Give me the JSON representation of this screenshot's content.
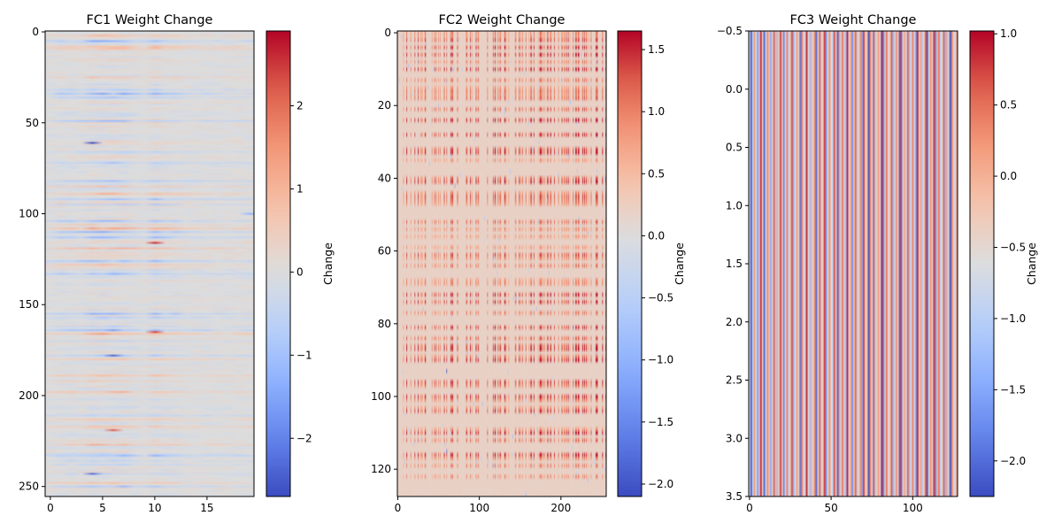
{
  "chart_data": [
    {
      "type": "heatmap",
      "title": "FC1 Weight Change",
      "colormap": "coolwarm",
      "grid": false,
      "rows": 256,
      "cols": 20,
      "xlim": [
        -0.5,
        19.5
      ],
      "ylim": [
        255.5,
        -0.5
      ],
      "x_ticks": [
        0,
        5,
        10,
        15
      ],
      "x_tick_labels": [
        "0",
        "5",
        "10",
        "15"
      ],
      "y_ticks": [
        0,
        50,
        100,
        150,
        200,
        250
      ],
      "y_tick_labels": [
        "0",
        "50",
        "100",
        "150",
        "200",
        "250"
      ],
      "colorbar": {
        "label": "Change",
        "range": [
          -2.7,
          2.9
        ],
        "center": 0,
        "ticks": [
          -2,
          -1,
          0,
          1,
          2
        ],
        "tick_labels": [
          "−2",
          "−1",
          "0",
          "1",
          "2"
        ]
      },
      "pattern": "mostly near zero; strongest changes concentrated in columns 4-7 and 10 with horizontal streaks across rows",
      "notable_values": [
        {
          "row": 61,
          "col": 4,
          "value": -2.7
        },
        {
          "row": 116,
          "col": 10,
          "value": 2.6
        },
        {
          "row": 165,
          "col": 10,
          "value": 2.4
        },
        {
          "row": 219,
          "col": 6,
          "value": 2.2
        },
        {
          "row": 243,
          "col": 4,
          "value": -2.3
        },
        {
          "row": 178,
          "col": 6,
          "value": -2.4
        },
        {
          "row": 100,
          "col": 19,
          "value": -1.2
        }
      ]
    },
    {
      "type": "heatmap",
      "title": "FC2 Weight Change",
      "colormap": "coolwarm",
      "grid": false,
      "rows": 128,
      "cols": 256,
      "xlim": [
        -0.5,
        255.5
      ],
      "ylim": [
        127.5,
        -0.5
      ],
      "x_ticks": [
        0,
        100,
        200
      ],
      "x_tick_labels": [
        "0",
        "100",
        "200"
      ],
      "y_ticks": [
        0,
        20,
        40,
        60,
        80,
        100,
        120
      ],
      "y_tick_labels": [
        "0",
        "20",
        "40",
        "60",
        "80",
        "100",
        "120"
      ],
      "colorbar": {
        "label": "Change",
        "range": [
          -2.1,
          1.65
        ],
        "center": 0,
        "ticks": [
          -2.0,
          -1.5,
          -1.0,
          -0.5,
          0.0,
          0.5,
          1.0,
          1.5
        ],
        "tick_labels": [
          "−2.0",
          "−1.5",
          "−1.0",
          "−0.5",
          "0.0",
          "0.5",
          "1.0",
          "1.5"
        ]
      },
      "pattern": "background slightly positive (~0.2); grid of small positive changes at specific rows and columns, a few isolated negative points",
      "notable_values": [
        {
          "row": 93,
          "col": 60,
          "value": -2.0
        },
        {
          "row": 115,
          "col": 60,
          "value": -1.6
        },
        {
          "row": 42,
          "col": 70,
          "value": -1.2
        }
      ]
    },
    {
      "type": "heatmap",
      "title": "FC3 Weight Change",
      "colormap": "coolwarm",
      "grid": false,
      "rows": 4,
      "cols": 128,
      "xlim": [
        -0.5,
        127.5
      ],
      "ylim": [
        3.5,
        -0.5
      ],
      "x_ticks": [
        0,
        50,
        100
      ],
      "x_tick_labels": [
        "0",
        "50",
        "100"
      ],
      "y_ticks": [
        -0.5,
        0.0,
        0.5,
        1.0,
        1.5,
        2.0,
        2.5,
        3.0,
        3.5
      ],
      "y_tick_labels": [
        "−0.5",
        "0.0",
        "0.5",
        "1.0",
        "1.5",
        "2.0",
        "2.5",
        "3.0",
        "3.5"
      ],
      "colorbar": {
        "label": "Change",
        "range": [
          -2.25,
          1.02
        ],
        "center": -0.6,
        "ticks": [
          -2.0,
          -1.5,
          -1.0,
          -0.5,
          0.0,
          0.5,
          1.0
        ],
        "tick_labels": [
          "−2.0",
          "−1.5",
          "−1.0",
          "−0.5",
          "0.0",
          "0.5",
          "1.0"
        ]
      },
      "pattern": "values constant down each column (vertical stripes), alternating between about -2.2 and +1.0 across the 128 columns",
      "column_values": [
        -0.6,
        -2.2,
        -0.9,
        0.2,
        -0.7,
        -1.6,
        -0.3,
        0.9,
        -0.5,
        -2.1,
        -0.8,
        0.3,
        -0.2,
        -1.5,
        -0.4,
        0.6,
        -1.1,
        0.1,
        -0.7,
        0.8,
        -0.3,
        -1.8,
        -0.5,
        0.4,
        -0.9,
        -0.2,
        0.7,
        -1.4,
        -0.6,
        0.2,
        -0.4,
        -1.9,
        0.5,
        -0.3,
        -0.8,
        0.9,
        -0.5,
        -1.2,
        0.0,
        -0.7,
        0.4,
        -2.0,
        -0.4,
        0.6,
        -0.9,
        -0.2,
        0.8,
        -1.6,
        -0.5,
        0.3,
        -0.6,
        -1.0,
        0.7,
        -0.3,
        -2.1,
        0.2,
        -0.8,
        0.5,
        -0.4,
        -1.3,
        0.9,
        -0.6,
        0.1,
        -1.7,
        -0.2,
        0.6,
        -0.9,
        -0.4,
        0.3,
        -1.5,
        0.8,
        -0.5,
        -0.1,
        -2.2,
        0.4,
        -0.7,
        0.7,
        -1.1,
        -0.3,
        0.2,
        -0.8,
        0.9,
        -1.9,
        -0.4,
        0.5,
        -0.6,
        -0.2,
        0.6,
        -1.4,
        -0.5,
        0.3,
        -0.9,
        0.8,
        -2.0,
        -0.3,
        0.1,
        -0.7,
        0.6,
        -1.2,
        -0.4,
        0.4,
        -0.8,
        -1.6,
        0.9,
        -0.5,
        0.2,
        -1.0,
        -0.3,
        0.7,
        -2.1,
        -0.6,
        0.3,
        -0.4,
        0.8,
        -1.8,
        -0.2,
        0.5,
        -0.9,
        -0.5,
        0.6,
        -1.3,
        0.1,
        -0.7,
        -2.2,
        0.4,
        -0.3,
        -0.8,
        0.2
      ]
    }
  ]
}
